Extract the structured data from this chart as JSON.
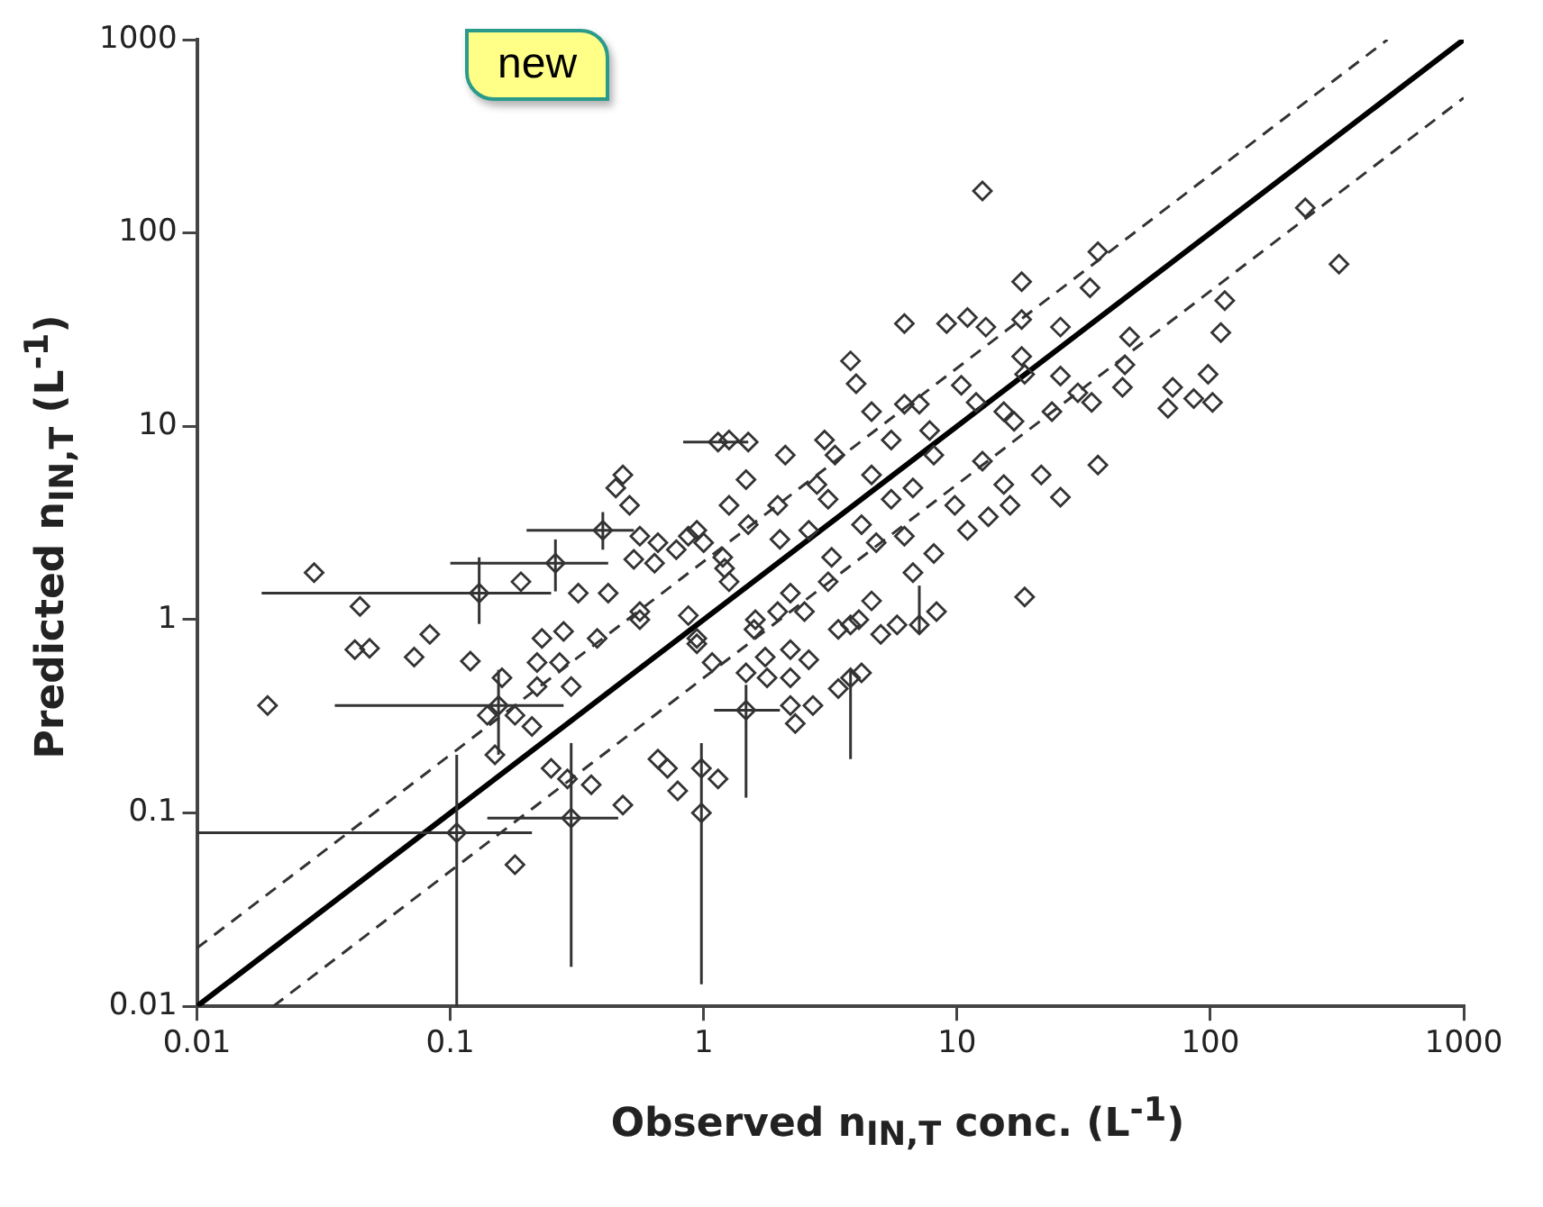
{
  "chart_data": {
    "type": "scatter",
    "xlabel": "Observed n$_{IN,T}$ conc. (L$^{-1}$)",
    "ylabel": "Predicted n$_{IN,T}$ (L$^{-1}$)",
    "annotations": [
      "new"
    ],
    "log": "xy",
    "xlim": [
      0.01,
      1000
    ],
    "ylim": [
      0.01,
      1000
    ],
    "xticks": [
      0.01,
      0.1,
      1,
      10,
      100,
      1000
    ],
    "yticks": [
      0.01,
      0.1,
      1,
      10,
      100,
      1000
    ],
    "grid": false,
    "legend": false,
    "series": [
      {
        "marker": "diamond",
        "color": "#333333",
        "x": [
          12.6,
          36,
          237,
          322,
          18,
          33.5,
          6.2,
          9.1,
          11,
          13,
          18,
          25.6,
          114,
          110,
          48,
          46,
          45,
          71,
          98,
          68,
          86,
          102,
          6.2,
          10.4,
          18,
          25.6,
          30,
          21.5,
          36,
          15.3,
          7.8,
          3.8,
          4,
          18.5,
          4.6,
          7.1,
          11.9,
          1.26,
          1.5,
          3,
          5.5,
          16.8,
          23.7,
          34,
          2.1,
          3.3,
          8.1,
          12.6,
          1.47,
          2.8,
          4.6,
          6.7,
          15.3,
          25.6,
          1.26,
          1.96,
          3.1,
          5.5,
          9.8,
          16.2,
          0.94,
          1.5,
          2.6,
          4.2,
          6.2,
          11,
          13.3,
          1.19,
          2,
          3.2,
          4.8,
          8.1,
          1.26,
          2.2,
          3.1,
          4.6,
          6.7,
          1.6,
          2.5,
          3.8,
          8.3,
          18.5,
          0.94,
          1.08,
          1.58,
          1.96,
          1.75,
          2.2,
          2.6,
          1.47,
          1.78,
          2.2,
          4.2,
          3.4,
          2.2,
          2.7,
          2.3,
          4.1,
          3.4,
          5,
          5.8,
          0.98,
          1.14,
          0.029,
          0.044,
          0.042,
          0.048,
          0.072,
          0.083,
          0.019,
          0.12,
          0.16,
          0.14,
          0.18,
          0.21,
          0.15,
          0.23,
          0.28,
          0.22,
          0.27,
          0.3,
          0.22,
          0.25,
          0.29,
          0.36,
          0.48,
          0.18,
          0.66,
          0.72,
          0.79,
          0.38,
          0.56,
          0.87,
          0.94,
          0.19,
          0.32,
          0.42,
          0.48,
          0.45,
          0.51,
          0.56,
          0.66,
          0.78,
          0.87,
          1,
          0.64,
          0.53,
          0.56,
          1.21
        ],
        "values": [
          165,
          80,
          135,
          69,
          56,
          52,
          34,
          34,
          36.5,
          32.6,
          35.7,
          32.6,
          44.7,
          30.5,
          29,
          20.8,
          15.9,
          15.9,
          18.6,
          12.4,
          13.9,
          13.3,
          13,
          16.3,
          23,
          18.2,
          14.9,
          5.6,
          6.3,
          11.9,
          9.5,
          21.8,
          16.6,
          18.6,
          11.9,
          13,
          13.3,
          8.5,
          8.3,
          8.5,
          8.5,
          10.6,
          11.9,
          13.3,
          7.1,
          7.1,
          7.1,
          6.6,
          5.3,
          5,
          5.6,
          4.8,
          5,
          4.3,
          3.9,
          3.9,
          4.2,
          4.2,
          3.9,
          3.9,
          2.9,
          3.1,
          2.9,
          3.1,
          2.7,
          2.9,
          3.4,
          2.1,
          2.6,
          2.1,
          2.5,
          2.2,
          1.57,
          1.37,
          1.57,
          1.25,
          1.75,
          1,
          1.1,
          0.94,
          1.1,
          1.31,
          0.75,
          0.6,
          0.89,
          1.1,
          0.64,
          0.7,
          0.62,
          0.53,
          0.5,
          0.5,
          0.53,
          0.44,
          0.36,
          0.36,
          0.29,
          1,
          0.89,
          0.84,
          0.94,
          0.17,
          0.15,
          1.75,
          1.17,
          0.7,
          0.71,
          0.64,
          0.84,
          0.36,
          0.61,
          0.5,
          0.32,
          0.32,
          0.28,
          0.2,
          0.8,
          0.87,
          0.6,
          0.6,
          0.45,
          0.45,
          0.17,
          0.15,
          0.14,
          0.11,
          0.054,
          0.19,
          0.17,
          0.13,
          0.8,
          1,
          1.05,
          0.8,
          1.57,
          1.37,
          1.37,
          5.6,
          4.8,
          3.9,
          2.7,
          2.5,
          2.3,
          2.7,
          2.5,
          1.96,
          2.05,
          1.1,
          1.84
        ]
      },
      {
        "marker": "diamond",
        "color": "#333333",
        "x": [
          0.13,
          0.26,
          0.4,
          1.14,
          0.155,
          3.8,
          1.47,
          7.1,
          0.98,
          0.3,
          0.106
        ],
        "values": [
          1.37,
          1.96,
          2.9,
          8.3,
          0.36,
          0.5,
          0.34,
          0.94,
          0.1,
          0.094,
          0.079
        ],
        "errors": [
          [
            0.95,
            2.1
          ],
          [
            1.4,
            2.6
          ],
          [
            2.3,
            3.6
          ],
          null,
          [
            0.2,
            0.55
          ],
          [
            0.19,
            0.55
          ],
          [
            0.12,
            0.46
          ],
          [
            0.85,
            1.5
          ],
          [
            0.013,
            0.23
          ],
          [
            0.016,
            0.23
          ],
          [
            0.01,
            0.2
          ]
        ],
        "xerrors": [
          [
            0.018,
            0.25
          ],
          [
            0.1,
            0.42
          ],
          [
            0.2,
            0.53
          ],
          [
            0.83,
            1.5
          ],
          [
            0.035,
            0.28
          ],
          null,
          [
            1.1,
            2
          ],
          null,
          null,
          [
            0.14,
            0.46
          ],
          [
            0.01,
            0.21
          ]
        ]
      },
      {
        "type": "line",
        "marker": "none",
        "color": "#000000",
        "line_style": "solid",
        "x": [
          0.01,
          1000
        ],
        "values": [
          0.01,
          1000
        ]
      },
      {
        "type": "line",
        "marker": "none",
        "color": "#333333",
        "line_style": "dashed",
        "x": [
          0.01,
          500
        ],
        "values": [
          0.02,
          1000
        ]
      },
      {
        "type": "line",
        "marker": "none",
        "color": "#333333",
        "line_style": "dashed",
        "x": [
          0.02,
          1000
        ],
        "values": [
          0.01,
          500
        ]
      }
    ]
  }
}
